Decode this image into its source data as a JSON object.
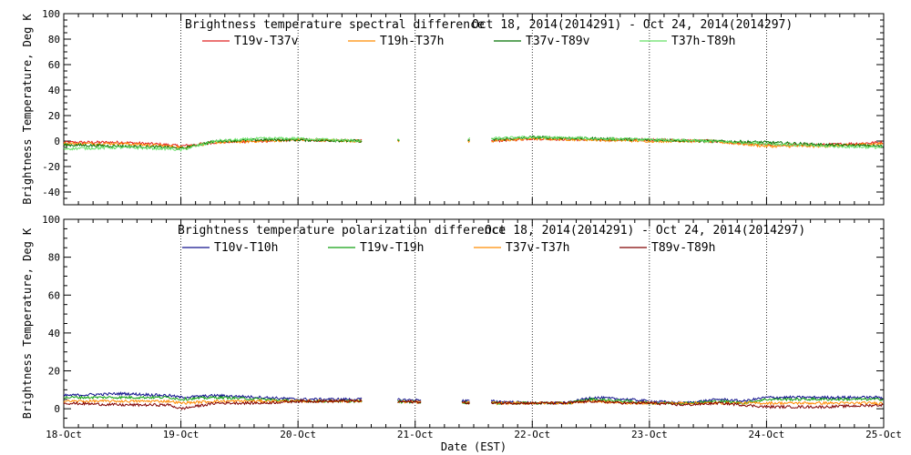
{
  "x_axis": {
    "label": "Date (EST)",
    "range": [
      0,
      7
    ],
    "tick_labels": [
      "18-Oct",
      "19-Oct",
      "20-Oct",
      "21-Oct",
      "22-Oct",
      "23-Oct",
      "24-Oct",
      "25-Oct"
    ]
  },
  "chart_data": [
    {
      "type": "line",
      "title": "Brightness temperature spectral difference",
      "date_range": "Oct 18, 2014(2014291) - Oct 24, 2014(2014297)",
      "ylabel": "Brightness Temperature, Deg K",
      "xlabel": "",
      "ylim": [
        -50,
        100
      ],
      "y_ticks": [
        -40,
        -20,
        0,
        20,
        40,
        60,
        80,
        100
      ],
      "grid": "vertical dotted at day boundaries",
      "legend_position": "top",
      "segments": [
        [
          0,
          2.55
        ],
        [
          2.85,
          2.87
        ],
        [
          3.45,
          3.47
        ],
        [
          3.65,
          7.0
        ]
      ],
      "series": [
        {
          "name": "T19v-T37v",
          "color": "#e02020",
          "x": [
            0,
            0.5,
            0.9,
            1.0,
            1.3,
            1.7,
            2.0,
            2.55,
            3.65,
            4.0,
            4.5,
            5.0,
            5.5,
            6.0,
            6.5,
            7.0
          ],
          "values": [
            -1,
            -1,
            -3,
            -4,
            -1,
            0,
            1,
            0,
            0,
            2,
            1,
            1,
            0,
            -3,
            -3,
            -1
          ]
        },
        {
          "name": "T19h-T37h",
          "color": "#ff8c00",
          "x": [
            0,
            0.5,
            0.9,
            1.0,
            1.3,
            1.7,
            2.0,
            2.55,
            3.65,
            4.0,
            4.5,
            5.0,
            5.5,
            6.0,
            6.5,
            7.0
          ],
          "values": [
            -2,
            -2,
            -4,
            -5,
            -1,
            0,
            1,
            0,
            0,
            2,
            1,
            0,
            0,
            -4,
            -4,
            -2
          ]
        },
        {
          "name": "T37v-T89v",
          "color": "#007000",
          "x": [
            0,
            0.5,
            0.9,
            1.0,
            1.3,
            1.7,
            2.0,
            2.55,
            3.65,
            4.0,
            4.5,
            5.0,
            5.5,
            6.0,
            6.5,
            7.0
          ],
          "values": [
            -3,
            -4,
            -5,
            -6,
            0,
            1,
            1,
            0,
            1,
            3,
            2,
            1,
            0,
            -1,
            -3,
            -4
          ]
        },
        {
          "name": "T37h-T89h",
          "color": "#66e066",
          "x": [
            0,
            0.5,
            0.9,
            1.0,
            1.3,
            1.7,
            2.0,
            2.55,
            3.65,
            4.0,
            4.5,
            5.0,
            5.5,
            6.0,
            6.5,
            7.0
          ],
          "values": [
            -6,
            -5,
            -6,
            -7,
            0,
            2,
            2,
            0,
            2,
            3,
            2,
            1,
            0,
            -2,
            -4,
            -5
          ]
        }
      ]
    },
    {
      "type": "line",
      "title": "Brightness temperature polarization difference",
      "date_range": "Oct 18, 2014(2014291) - Oct 24, 2014(2014297)",
      "ylabel": "Brightness Temperature, Deg K",
      "xlabel": "Date (EST)",
      "ylim": [
        -10,
        100
      ],
      "y_ticks": [
        0,
        20,
        40,
        60,
        80,
        100
      ],
      "grid": "vertical dotted at day boundaries",
      "legend_position": "top",
      "segments": [
        [
          0,
          2.55
        ],
        [
          2.85,
          3.05
        ],
        [
          3.4,
          3.47
        ],
        [
          3.65,
          7.0
        ]
      ],
      "series": [
        {
          "name": "T10v-T10h",
          "color": "#10108c",
          "x": [
            0,
            0.5,
            0.9,
            1.0,
            1.3,
            1.7,
            2.0,
            2.55,
            3.65,
            4.0,
            4.3,
            4.5,
            4.8,
            5.0,
            5.3,
            5.6,
            5.8,
            6.0,
            6.5,
            7.0
          ],
          "values": [
            7,
            8,
            7,
            6,
            7,
            6,
            5,
            5,
            4,
            3,
            3,
            6,
            5,
            4,
            3,
            5,
            4,
            6,
            6,
            6
          ]
        },
        {
          "name": "T19v-T19h",
          "color": "#10a010",
          "x": [
            0,
            0.5,
            0.9,
            1.0,
            1.3,
            1.7,
            2.0,
            2.55,
            3.65,
            4.0,
            4.3,
            4.5,
            4.8,
            5.0,
            5.3,
            5.6,
            5.8,
            6.0,
            6.5,
            7.0
          ],
          "values": [
            6,
            6,
            6,
            5,
            6,
            5,
            4,
            4,
            3,
            3,
            3,
            5,
            4,
            3,
            3,
            4,
            3,
            5,
            5,
            5
          ]
        },
        {
          "name": "T37v-T37h",
          "color": "#ff8c00",
          "x": [
            0,
            0.5,
            0.9,
            1.0,
            1.3,
            1.7,
            2.0,
            2.55,
            3.65,
            4.0,
            4.3,
            4.5,
            4.8,
            5.0,
            5.3,
            5.6,
            5.8,
            6.0,
            6.5,
            7.0
          ],
          "values": [
            4,
            4,
            4,
            3,
            4,
            4,
            4,
            4,
            3,
            3,
            3,
            4,
            3,
            3,
            3,
            3,
            3,
            3,
            3,
            3
          ]
        },
        {
          "name": "T89v-T89h",
          "color": "#800000",
          "x": [
            0,
            0.5,
            0.9,
            1.0,
            1.3,
            1.7,
            2.0,
            2.55,
            3.65,
            4.0,
            4.3,
            4.5,
            4.8,
            5.0,
            5.3,
            5.6,
            5.8,
            6.0,
            6.5,
            7.0
          ],
          "values": [
            3,
            2,
            2,
            0,
            3,
            3,
            4,
            4,
            3,
            3,
            3,
            4,
            3,
            3,
            2,
            3,
            2,
            1,
            1,
            2
          ]
        }
      ]
    }
  ]
}
